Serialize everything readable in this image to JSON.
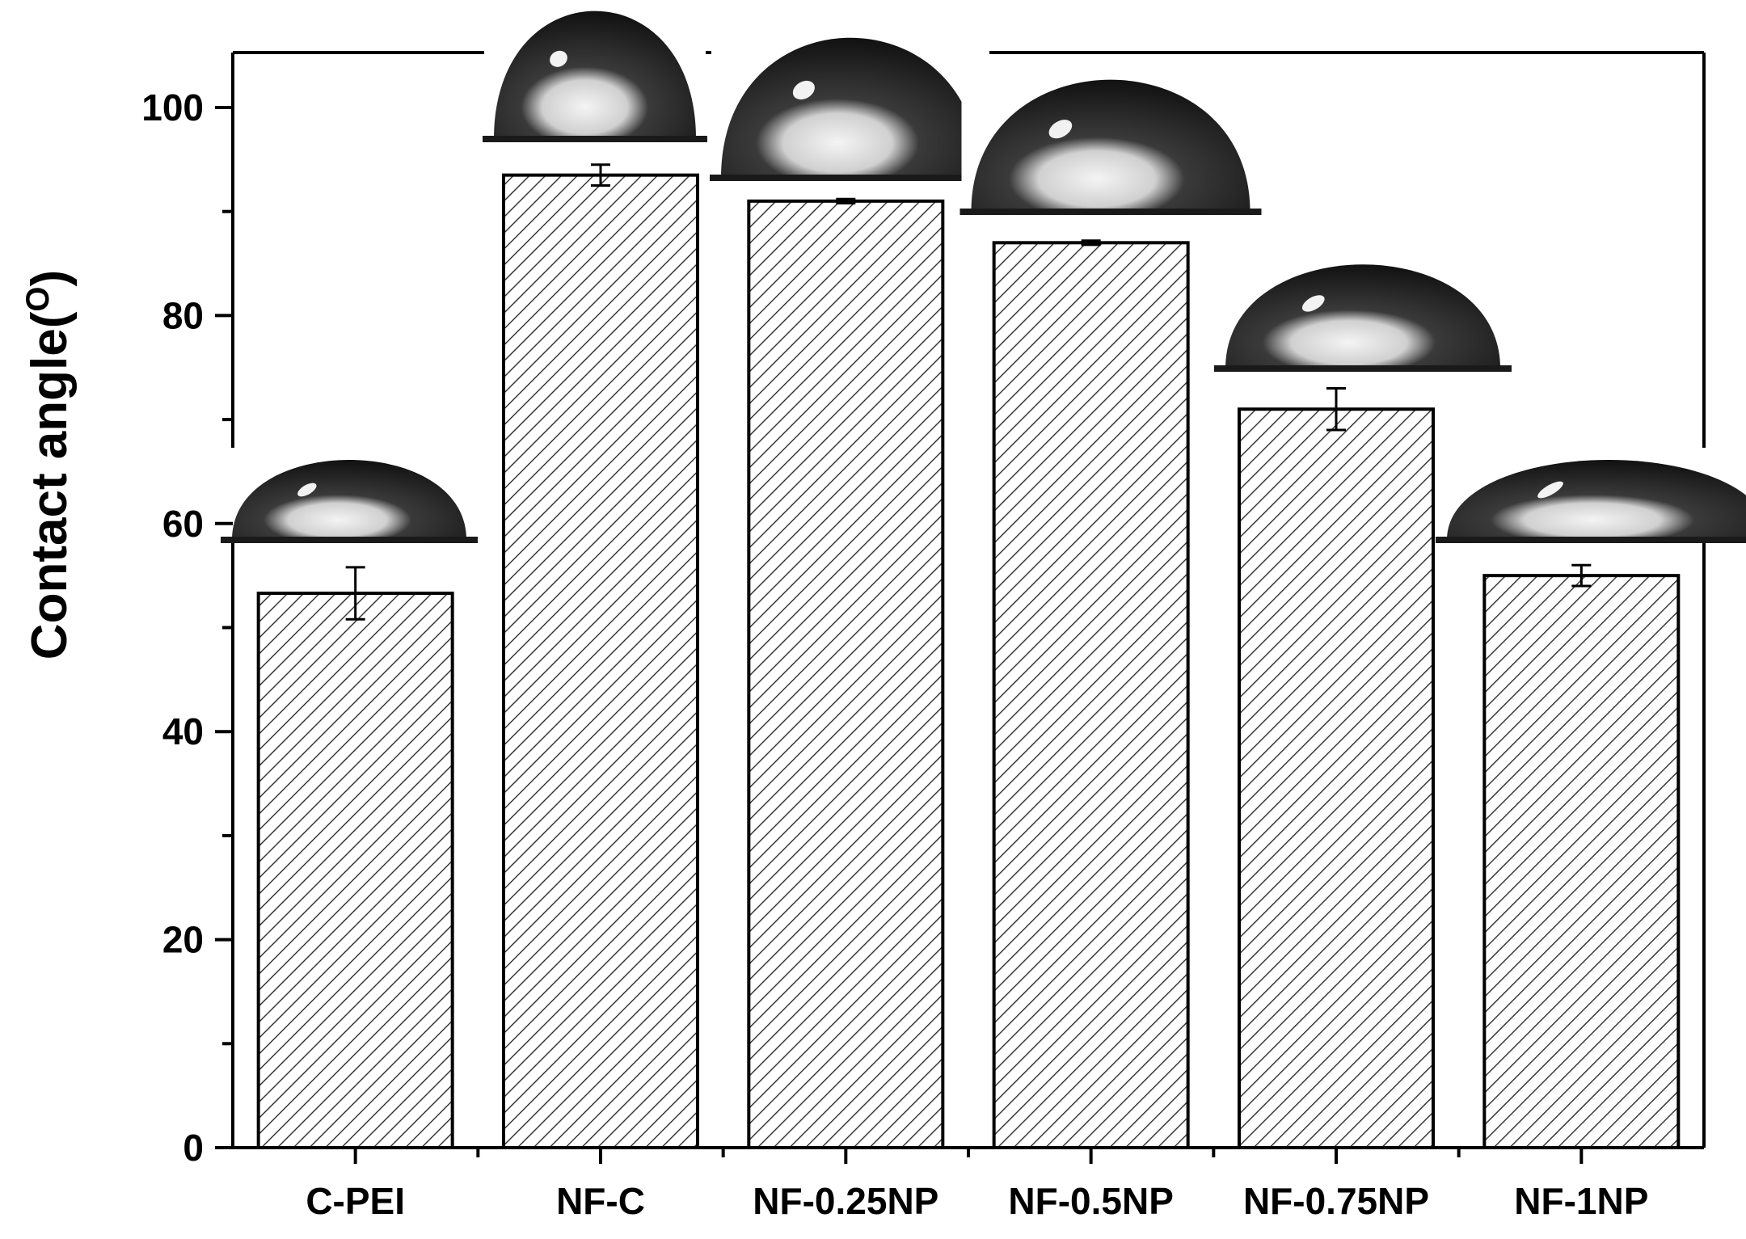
{
  "chart_data": {
    "type": "bar",
    "xlabel": "",
    "ylabel": "Contact angle(",
    "ylabel_sup": "O",
    "ylabel_close": ")",
    "categories": [
      "C-PEI",
      "NF-C",
      "NF-0.25NP",
      "NF-0.5NP",
      "NF-0.75NP",
      "NF-1NP"
    ],
    "values": [
      53.3,
      93.5,
      91.0,
      87.0,
      71.0,
      55.0
    ],
    "errors": [
      2.5,
      1.0,
      0.2,
      0.2,
      2.0,
      1.0
    ],
    "ylim": [
      0,
      105
    ],
    "yticks": [
      0,
      20,
      40,
      60,
      80,
      100
    ],
    "bar_fill": "hatched",
    "bar_color": "#ffffff",
    "edge_color": "#000000",
    "insets": [
      "water-droplet-image",
      "water-droplet-image",
      "water-droplet-image",
      "water-droplet-image",
      "water-droplet-image",
      "water-droplet-image"
    ]
  }
}
